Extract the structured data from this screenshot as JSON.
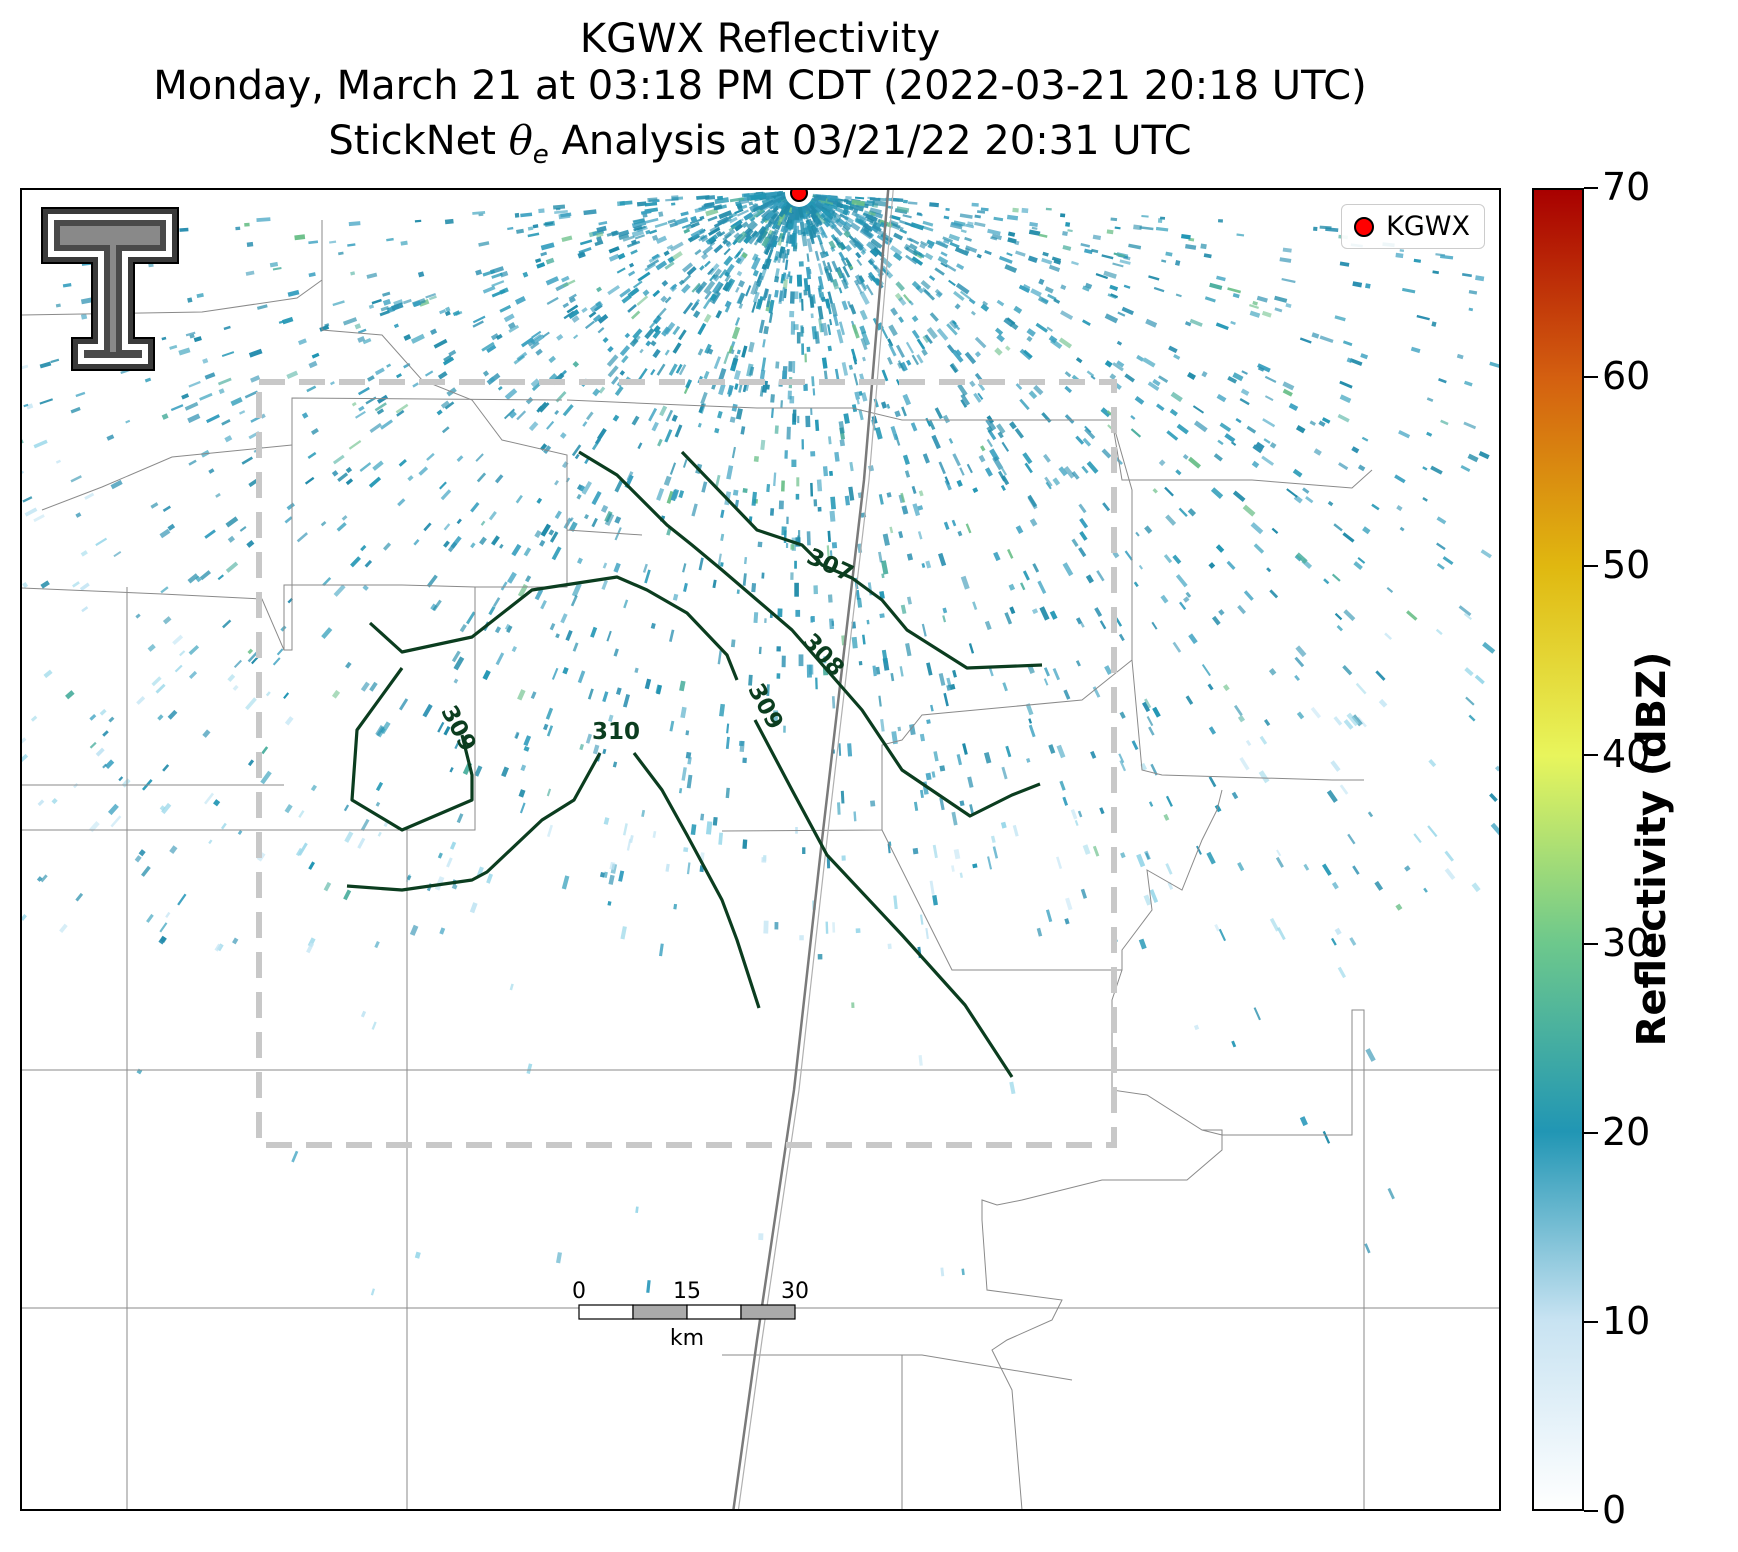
{
  "title": {
    "line1": "KGWX Reflectivity",
    "line2": "Monday, March 21 at 03:18 PM CDT (2022-03-21 20:18 UTC)",
    "line3_prefix": "StickNet ",
    "line3_symbol": "θ",
    "line3_subscript": "e",
    "line3_suffix": " Analysis at 03/21/22 20:31 UTC"
  },
  "legend": {
    "label": "KGWX",
    "marker_color": "#ff0000"
  },
  "colorbar": {
    "label": "Reflectivity (dBZ)",
    "min": 0,
    "max": 70,
    "ticks": [
      "0",
      "10",
      "20",
      "30",
      "40",
      "50",
      "60",
      "70"
    ],
    "colors": [
      "#ffffff",
      "#c8e3f2",
      "#2196b4",
      "#6dc88c",
      "#e8f55c",
      "#e0b810",
      "#d46010",
      "#a80000"
    ]
  },
  "contours": {
    "color": "#0b3d1f",
    "labels": [
      "307",
      "308",
      "309",
      "309",
      "310"
    ]
  },
  "scalebar": {
    "ticks": [
      "0",
      "15",
      "30"
    ],
    "unit": "km"
  },
  "logo": {
    "name": "Texas Tech Double T"
  },
  "colors": {
    "analysis_box": "#c8c8c8",
    "county_lines": "#8a8a8a",
    "highway": "#777777"
  }
}
